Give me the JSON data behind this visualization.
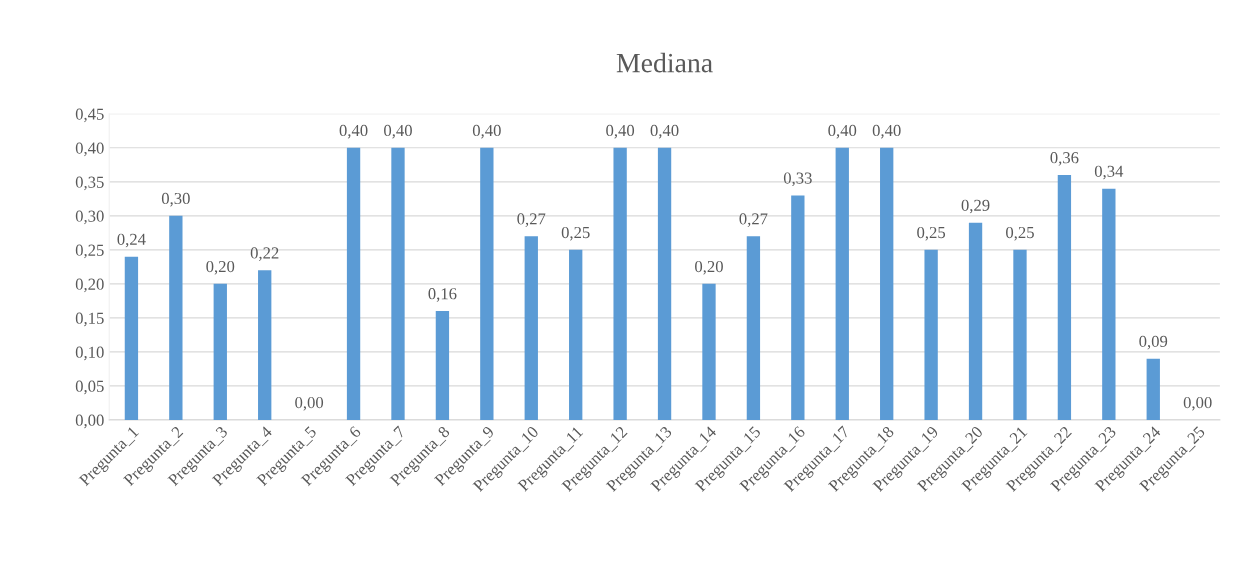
{
  "chart_data": {
    "type": "bar",
    "title": "Mediana",
    "categories": [
      "Pregunta_1",
      "Pregunta_2",
      "Pregunta_3",
      "Pregunta_4",
      "Pregunta_5",
      "Pregunta_6",
      "Pregunta_7",
      "Pregunta_8",
      "Pregunta_9",
      "Pregunta_10",
      "Pregunta_11",
      "Pregunta_12",
      "Pregunta_13",
      "Pregunta_14",
      "Pregunta_15",
      "Pregunta_16",
      "Pregunta_17",
      "Pregunta_18",
      "Pregunta_19",
      "Pregunta_20",
      "Pregunta_21",
      "Pregunta_22",
      "Pregunta_23",
      "Pregunta_24",
      "Pregunta_25"
    ],
    "values": [
      0.24,
      0.3,
      0.2,
      0.22,
      0.0,
      0.4,
      0.4,
      0.16,
      0.4,
      0.27,
      0.25,
      0.4,
      0.4,
      0.2,
      0.27,
      0.33,
      0.4,
      0.4,
      0.25,
      0.29,
      0.25,
      0.36,
      0.34,
      0.09,
      0.0
    ],
    "value_labels": [
      "0,24",
      "0,30",
      "0,20",
      "0,22",
      "0,00",
      "0,40",
      "0,40",
      "0,16",
      "0,40",
      "0,27",
      "0,25",
      "0,40",
      "0,40",
      "0,20",
      "0,27",
      "0,33",
      "0,40",
      "0,40",
      "0,25",
      "0,29",
      "0,25",
      "0,36",
      "0,34",
      "0,09",
      "0,00"
    ],
    "color": "#5b9bd5",
    "ylim": [
      0,
      0.45
    ],
    "yticks": [
      {
        "value": 0,
        "label": "0,00"
      },
      {
        "value": 0.05,
        "label": "0,05"
      },
      {
        "value": 0.1,
        "label": "0,10"
      },
      {
        "value": 0.15,
        "label": "0,15"
      },
      {
        "value": 0.2,
        "label": "0,20"
      },
      {
        "value": 0.25,
        "label": "0,25"
      },
      {
        "value": 0.3,
        "label": "0,30"
      },
      {
        "value": 0.35,
        "label": "0,35"
      },
      {
        "value": 0.4,
        "label": "0,40"
      },
      {
        "value": 0.45,
        "label": "0,45"
      }
    ],
    "grid": "y",
    "legend": false
  }
}
